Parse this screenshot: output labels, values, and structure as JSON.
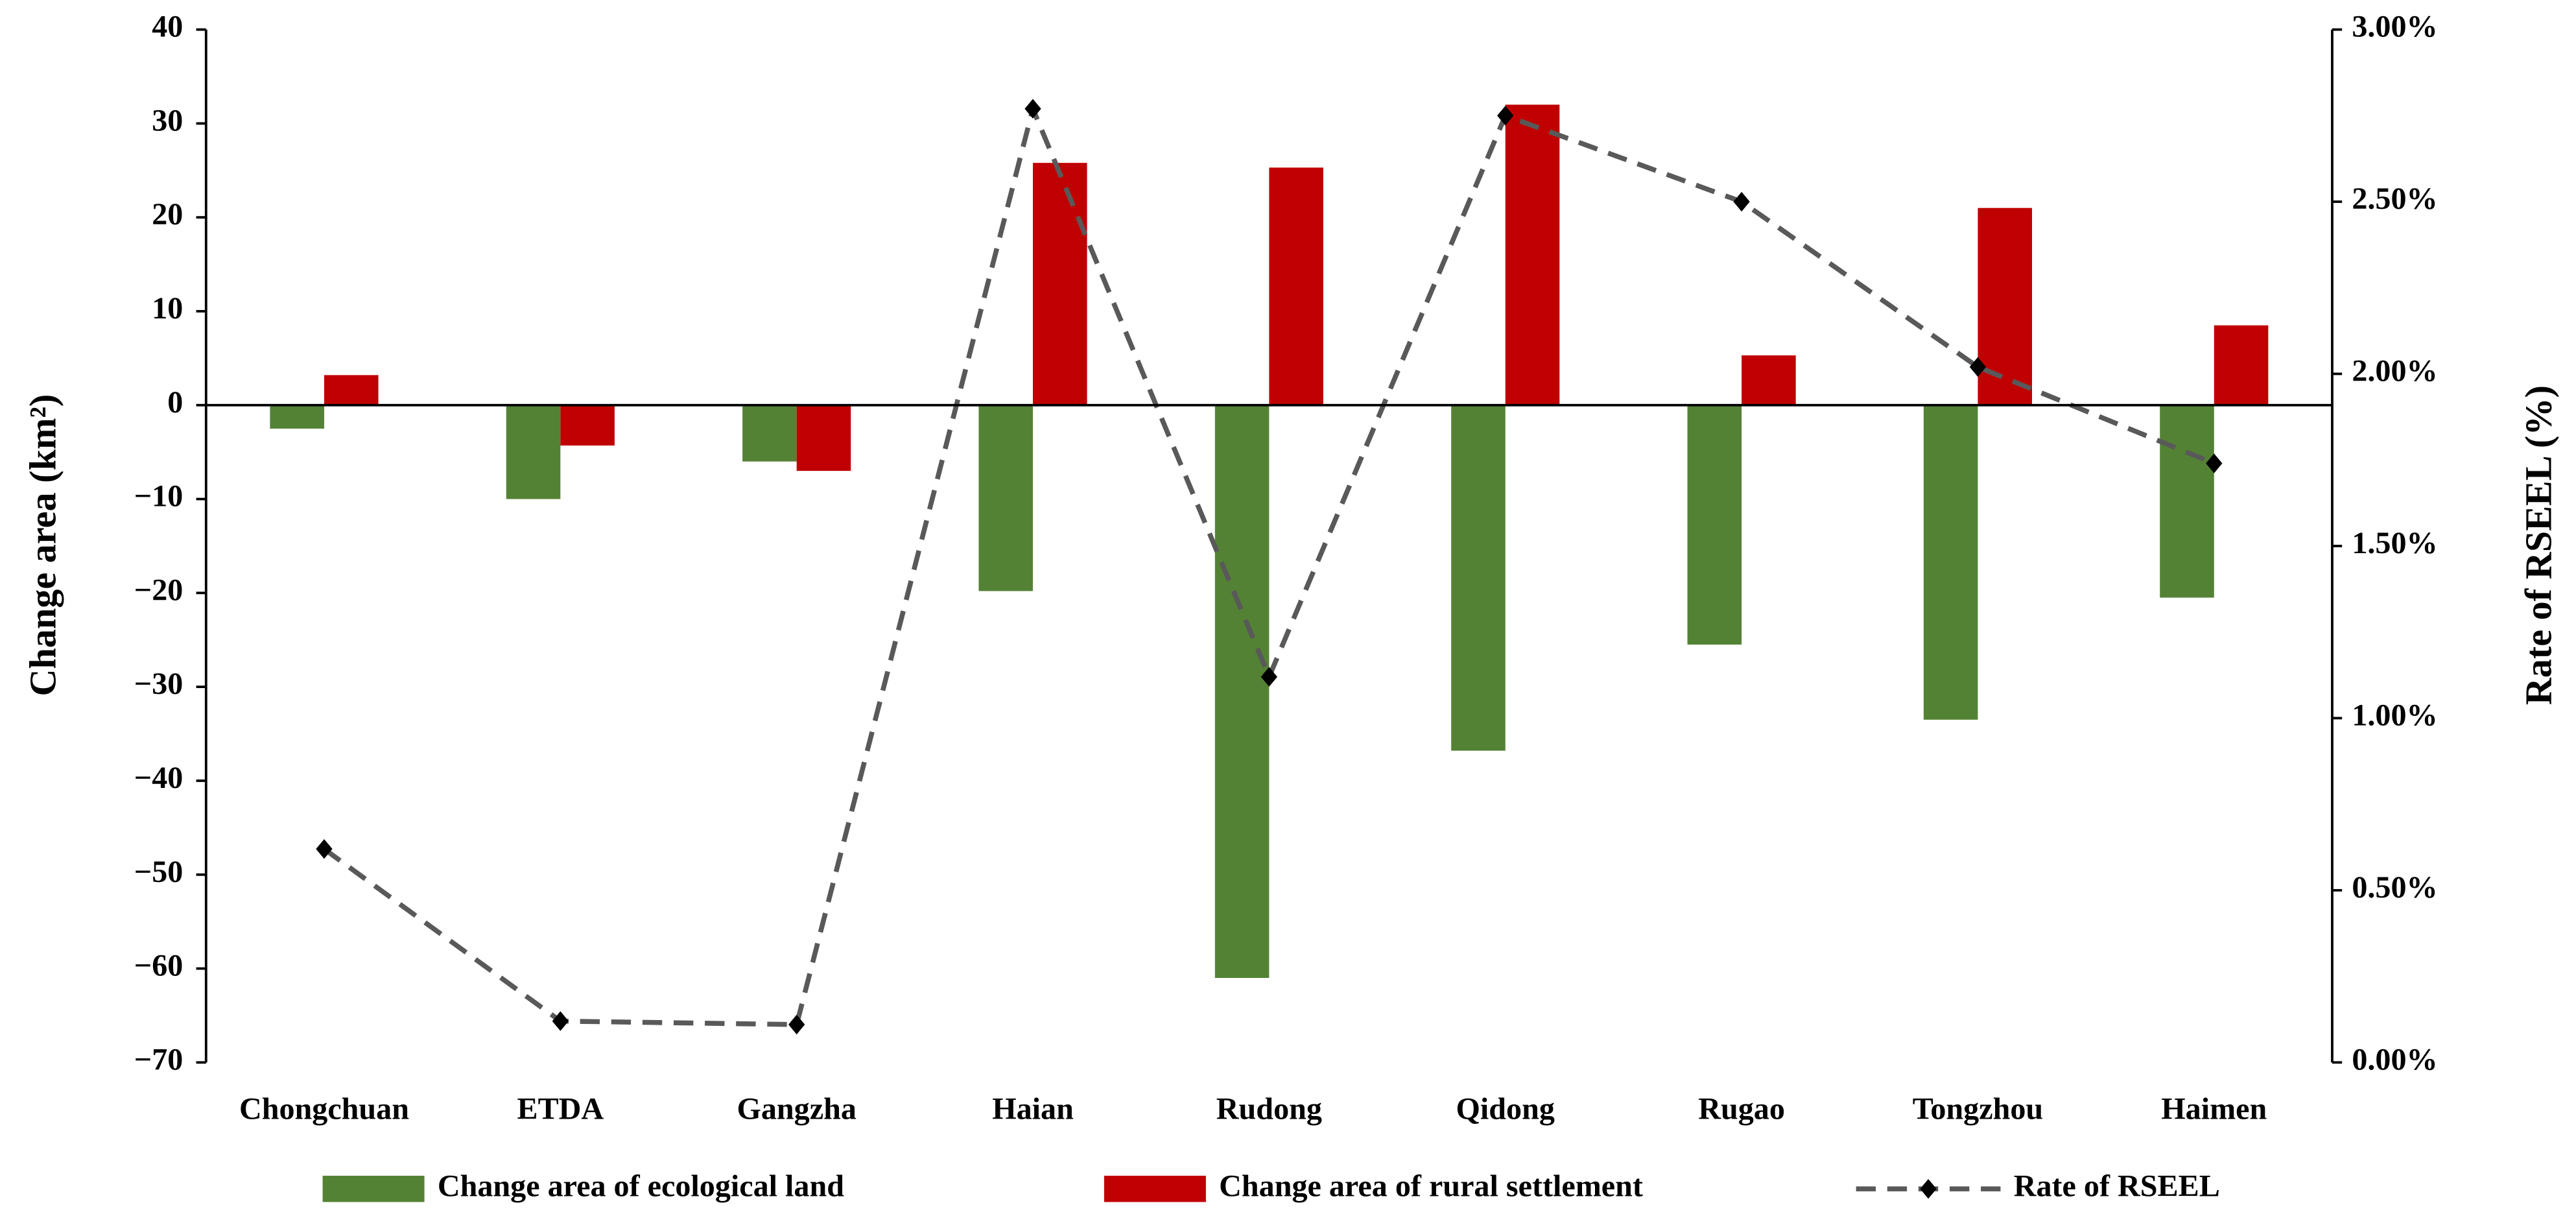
{
  "chart_data": {
    "type": "bar",
    "y_label": "Change area (km²)",
    "y2_label": "Rate of  RSEEL (%)",
    "categories": [
      "Chongchuan",
      "ETDA",
      "Gangzha",
      "Haian",
      "Rudong",
      "Qidong",
      "Rugao",
      "Tongzhou",
      "Haimen"
    ],
    "series": [
      {
        "name": "Change area of ecological land",
        "type": "bar",
        "color": "#548235",
        "values": [
          -2.5,
          -10,
          -6,
          -19.8,
          -61,
          -36.8,
          -25.5,
          -33.5,
          -20.5
        ]
      },
      {
        "name": "Change area of rural settlement",
        "type": "bar",
        "color": "#c00000",
        "values": [
          3.2,
          -4.3,
          -7,
          25.8,
          25.3,
          32,
          5.3,
          21,
          8.5
        ]
      },
      {
        "name": "Rate of RSEEL",
        "type": "line",
        "axis": "y2",
        "color": "#595959",
        "values": [
          0.62,
          0.12,
          0.11,
          2.77,
          1.12,
          2.75,
          2.5,
          2.02,
          1.74
        ]
      }
    ],
    "ylim": [
      -70,
      40
    ],
    "yticks": [
      {
        "value": -70,
        "label": "−70"
      },
      {
        "value": -60,
        "label": "−60"
      },
      {
        "value": -50,
        "label": "−50"
      },
      {
        "value": -40,
        "label": "−40"
      },
      {
        "value": -30,
        "label": "−30"
      },
      {
        "value": -20,
        "label": "−20"
      },
      {
        "value": -10,
        "label": "−10"
      },
      0,
      10,
      20,
      30,
      40
    ],
    "y2lim": [
      0,
      3
    ],
    "y2ticks": [
      {
        "value": 0,
        "label": "0.00%"
      },
      {
        "value": 0.5,
        "label": "0.50%"
      },
      {
        "value": 1,
        "label": "1.00%"
      },
      {
        "value": 1.5,
        "label": "1.50%"
      },
      {
        "value": 2,
        "label": "2.00%"
      },
      {
        "value": 2.5,
        "label": "2.50%"
      },
      {
        "value": 3,
        "label": "3.00%"
      }
    ],
    "grid": false,
    "legend": "bottom"
  }
}
